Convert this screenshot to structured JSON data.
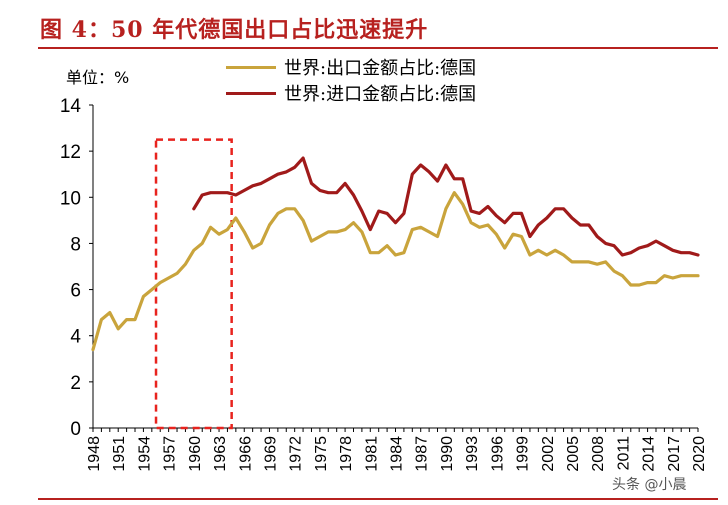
{
  "header": {
    "title": "图 4：50 年代德国出口占比迅速提升"
  },
  "unit_label": "单位：%",
  "watermark": "头条 @小晨",
  "colors": {
    "export": "#c9a43c",
    "import": "#a01a1a",
    "highlight": "#e8231e",
    "title": "#b7211f"
  },
  "chart_data": {
    "type": "line",
    "title": "",
    "ylim": [
      0,
      14
    ],
    "yticks": [
      0,
      2,
      4,
      6,
      8,
      10,
      12,
      14
    ],
    "xlim": [
      1948,
      2020
    ],
    "xticks": [
      1948,
      1951,
      1954,
      1957,
      1960,
      1963,
      1966,
      1969,
      1972,
      1975,
      1978,
      1981,
      1984,
      1987,
      1990,
      1993,
      1996,
      1999,
      2002,
      2005,
      2008,
      2011,
      2014,
      2017,
      2020
    ],
    "highlight_range": {
      "x": [
        1955.5,
        1964.5
      ],
      "y": [
        0,
        12.5
      ]
    },
    "legend_position": "top-center",
    "series": [
      {
        "name": "世界:出口金额占比:德国",
        "color": "#c9a43c",
        "x": [
          1948,
          1949,
          1950,
          1951,
          1952,
          1953,
          1954,
          1955,
          1956,
          1957,
          1958,
          1959,
          1960,
          1961,
          1962,
          1963,
          1964,
          1965,
          1966,
          1967,
          1968,
          1969,
          1970,
          1971,
          1972,
          1973,
          1974,
          1975,
          1976,
          1977,
          1978,
          1979,
          1980,
          1981,
          1982,
          1983,
          1984,
          1985,
          1986,
          1987,
          1988,
          1989,
          1990,
          1991,
          1992,
          1993,
          1994,
          1995,
          1996,
          1997,
          1998,
          1999,
          2000,
          2001,
          2002,
          2003,
          2004,
          2005,
          2006,
          2007,
          2008,
          2009,
          2010,
          2011,
          2012,
          2013,
          2014,
          2015,
          2016,
          2017,
          2018,
          2019,
          2020
        ],
        "values": [
          3.4,
          4.7,
          5.0,
          4.3,
          4.7,
          4.7,
          5.7,
          6.0,
          6.3,
          6.5,
          6.7,
          7.1,
          7.7,
          8.0,
          8.7,
          8.4,
          8.6,
          9.1,
          8.5,
          7.8,
          8.0,
          8.8,
          9.3,
          9.5,
          9.5,
          9.0,
          8.1,
          8.3,
          8.5,
          8.5,
          8.6,
          8.9,
          8.5,
          7.6,
          7.6,
          7.9,
          7.5,
          7.6,
          8.6,
          8.7,
          8.5,
          8.3,
          9.5,
          10.2,
          9.7,
          8.9,
          8.7,
          8.8,
          8.4,
          7.8,
          8.4,
          8.3,
          7.5,
          7.7,
          7.5,
          7.7,
          7.5,
          7.2,
          7.2,
          7.2,
          7.1,
          7.2,
          6.8,
          6.6,
          6.2,
          6.2,
          6.3,
          6.3,
          6.6,
          6.5,
          6.6,
          6.6,
          6.6
        ]
      },
      {
        "name": "世界:进口金额占比:德国",
        "color": "#a01a1a",
        "x": [
          1960,
          1961,
          1962,
          1963,
          1964,
          1965,
          1966,
          1967,
          1968,
          1969,
          1970,
          1971,
          1972,
          1973,
          1974,
          1975,
          1976,
          1977,
          1978,
          1979,
          1980,
          1981,
          1982,
          1983,
          1984,
          1985,
          1986,
          1987,
          1988,
          1989,
          1990,
          1991,
          1992,
          1993,
          1994,
          1995,
          1996,
          1997,
          1998,
          1999,
          2000,
          2001,
          2002,
          2003,
          2004,
          2005,
          2006,
          2007,
          2008,
          2009,
          2010,
          2011,
          2012,
          2013,
          2014,
          2015,
          2016,
          2017,
          2018,
          2019,
          2020
        ],
        "values": [
          9.5,
          10.1,
          10.2,
          10.2,
          10.2,
          10.1,
          10.3,
          10.5,
          10.6,
          10.8,
          11.0,
          11.1,
          11.3,
          11.7,
          10.6,
          10.3,
          10.2,
          10.2,
          10.6,
          10.1,
          9.4,
          8.6,
          9.4,
          9.3,
          8.9,
          9.3,
          11.0,
          11.4,
          11.1,
          10.7,
          11.4,
          10.8,
          10.8,
          9.4,
          9.3,
          9.6,
          9.2,
          8.9,
          9.3,
          9.3,
          8.3,
          8.8,
          9.1,
          9.5,
          9.5,
          9.1,
          8.8,
          8.8,
          8.3,
          8.0,
          7.9,
          7.5,
          7.6,
          7.8,
          7.9,
          8.1,
          7.9,
          7.7,
          7.6,
          7.6,
          7.5
        ]
      }
    ]
  }
}
